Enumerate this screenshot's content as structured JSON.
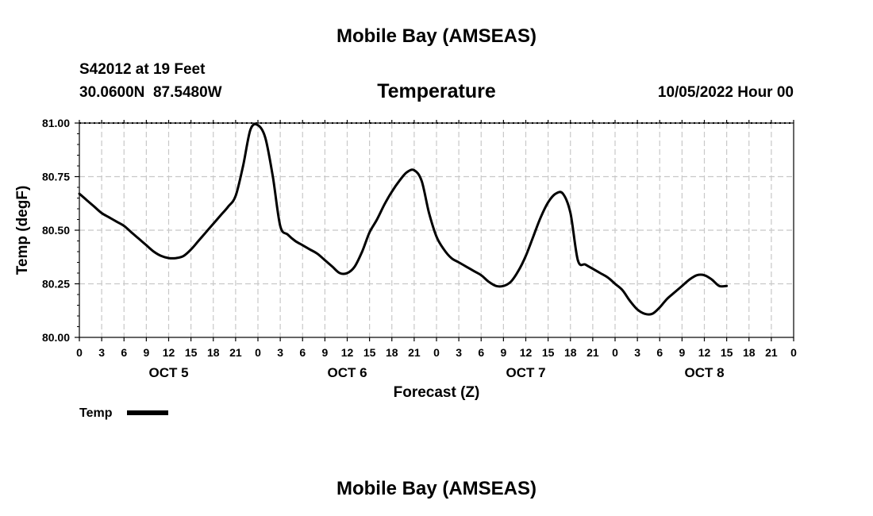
{
  "header": {
    "title": "Mobile Bay (AMSEAS)",
    "station": "S42012 at 19 Feet",
    "coords": "30.0600N  87.5480W",
    "subtitle": "Temperature",
    "datetime": "10/05/2022 Hour 00",
    "footer_title": "Mobile Bay (AMSEAS)"
  },
  "chart_data": {
    "type": "line",
    "title": "Temperature",
    "xlabel": "Forecast (Z)",
    "ylabel": "Temp (degF)",
    "ylim": [
      80.0,
      81.0
    ],
    "xlim_hours": [
      0,
      96
    ],
    "yticks": [
      "80.00",
      "80.25",
      "80.50",
      "80.75",
      "81.00"
    ],
    "xtick_labels": [
      "0",
      "3",
      "6",
      "9",
      "12",
      "15",
      "18",
      "21",
      "0",
      "3",
      "6",
      "9",
      "12",
      "15",
      "18",
      "21",
      "0",
      "3",
      "6",
      "9",
      "12",
      "15",
      "18",
      "21",
      "0",
      "3",
      "6",
      "9",
      "12",
      "15",
      "18",
      "21",
      "0"
    ],
    "day_labels": [
      {
        "label": "OCT 5",
        "center_hour": 12
      },
      {
        "label": "OCT 6",
        "center_hour": 36
      },
      {
        "label": "OCT 7",
        "center_hour": 60
      },
      {
        "label": "OCT 8",
        "center_hour": 84
      }
    ],
    "grid": true,
    "legend": "bottom-left",
    "series": [
      {
        "name": "Temp",
        "color": "#000000",
        "points": [
          [
            0,
            80.67
          ],
          [
            1,
            80.64
          ],
          [
            2,
            80.61
          ],
          [
            3,
            80.58
          ],
          [
            4,
            80.56
          ],
          [
            5,
            80.54
          ],
          [
            6,
            80.52
          ],
          [
            7,
            80.49
          ],
          [
            8,
            80.46
          ],
          [
            9,
            80.43
          ],
          [
            10,
            80.4
          ],
          [
            11,
            80.38
          ],
          [
            12,
            80.37
          ],
          [
            13,
            80.37
          ],
          [
            14,
            80.38
          ],
          [
            15,
            80.41
          ],
          [
            16,
            80.45
          ],
          [
            17,
            80.49
          ],
          [
            18,
            80.53
          ],
          [
            19,
            80.57
          ],
          [
            20,
            80.61
          ],
          [
            21,
            80.66
          ],
          [
            22,
            80.8
          ],
          [
            23,
            80.97
          ],
          [
            24,
            80.99
          ],
          [
            25,
            80.93
          ],
          [
            26,
            80.75
          ],
          [
            27,
            80.52
          ],
          [
            28,
            80.48
          ],
          [
            29,
            80.45
          ],
          [
            30,
            80.43
          ],
          [
            31,
            80.41
          ],
          [
            32,
            80.39
          ],
          [
            33,
            80.36
          ],
          [
            34,
            80.33
          ],
          [
            35,
            80.3
          ],
          [
            36,
            80.3
          ],
          [
            37,
            80.33
          ],
          [
            38,
            80.4
          ],
          [
            39,
            80.49
          ],
          [
            40,
            80.55
          ],
          [
            41,
            80.62
          ],
          [
            42,
            80.68
          ],
          [
            43,
            80.73
          ],
          [
            44,
            80.77
          ],
          [
            45,
            80.78
          ],
          [
            46,
            80.73
          ],
          [
            47,
            80.58
          ],
          [
            48,
            80.47
          ],
          [
            49,
            80.41
          ],
          [
            50,
            80.37
          ],
          [
            51,
            80.35
          ],
          [
            52,
            80.33
          ],
          [
            53,
            80.31
          ],
          [
            54,
            80.29
          ],
          [
            55,
            80.26
          ],
          [
            56,
            80.24
          ],
          [
            57,
            80.24
          ],
          [
            58,
            80.26
          ],
          [
            59,
            80.31
          ],
          [
            60,
            80.38
          ],
          [
            61,
            80.47
          ],
          [
            62,
            80.56
          ],
          [
            63,
            80.63
          ],
          [
            64,
            80.67
          ],
          [
            65,
            80.67
          ],
          [
            66,
            80.58
          ],
          [
            67,
            80.36
          ],
          [
            68,
            80.34
          ],
          [
            69,
            80.32
          ],
          [
            70,
            80.3
          ],
          [
            71,
            80.28
          ],
          [
            72,
            80.25
          ],
          [
            73,
            80.22
          ],
          [
            74,
            80.17
          ],
          [
            75,
            80.13
          ],
          [
            76,
            80.11
          ],
          [
            77,
            80.11
          ],
          [
            78,
            80.14
          ],
          [
            79,
            80.18
          ],
          [
            80,
            80.21
          ],
          [
            81,
            80.24
          ],
          [
            82,
            80.27
          ],
          [
            83,
            80.29
          ],
          [
            84,
            80.29
          ],
          [
            85,
            80.27
          ],
          [
            86,
            80.24
          ],
          [
            87,
            80.24
          ]
        ]
      }
    ]
  },
  "legend": {
    "label": "Temp"
  }
}
